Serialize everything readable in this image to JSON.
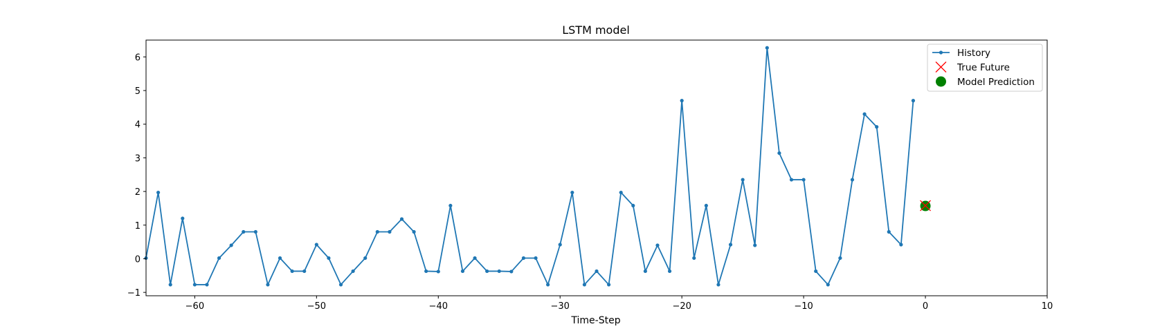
{
  "chart_data": {
    "type": "line",
    "title": "LSTM model",
    "xlabel": "Time-Step",
    "ylabel": "",
    "xlim": [
      -64,
      10
    ],
    "ylim": [
      -1.1,
      6.5
    ],
    "xticks": [
      -60,
      -50,
      -40,
      -30,
      -20,
      -10,
      0,
      10
    ],
    "yticks": [
      -1,
      0,
      1,
      2,
      3,
      4,
      5,
      6
    ],
    "grid": false,
    "legend_position": "top-right",
    "series": [
      {
        "name": "History",
        "kind": "line-with-points",
        "color": "#1f77b4",
        "x": [
          -64,
          -63,
          -62,
          -61,
          -60,
          -59,
          -58,
          -57,
          -56,
          -55,
          -54,
          -53,
          -52,
          -51,
          -50,
          -49,
          -48,
          -47,
          -46,
          -45,
          -44,
          -43,
          -42,
          -41,
          -40,
          -39,
          -38,
          -37,
          -36,
          -35,
          -34,
          -33,
          -32,
          -31,
          -30,
          -29,
          -28,
          -27,
          -26,
          -25,
          -24,
          -23,
          -22,
          -21,
          -20,
          -19,
          -18,
          -17,
          -16,
          -15,
          -14,
          -13,
          -12,
          -11,
          -10,
          -9,
          -8,
          -7,
          -6,
          -5,
          -4,
          -3,
          -2,
          -1
        ],
        "y": [
          0.02,
          1.97,
          -0.77,
          1.2,
          -0.77,
          -0.77,
          0.02,
          0.4,
          0.8,
          0.8,
          -0.77,
          0.02,
          -0.37,
          -0.37,
          0.42,
          0.02,
          -0.77,
          -0.37,
          0.02,
          0.8,
          0.8,
          1.18,
          0.8,
          -0.37,
          -0.38,
          1.58,
          -0.37,
          0.02,
          -0.37,
          -0.37,
          -0.38,
          0.02,
          0.02,
          -0.77,
          0.42,
          1.97,
          -0.77,
          -0.37,
          -0.77,
          1.97,
          1.58,
          -0.37,
          0.4,
          -0.37,
          4.7,
          0.02,
          1.58,
          -0.77,
          0.42,
          2.35,
          0.4,
          6.27,
          3.14,
          2.35,
          2.35,
          -0.37,
          -0.77,
          0.02,
          2.35,
          4.3,
          3.92,
          0.8,
          0.42,
          4.7
        ]
      },
      {
        "name": "True Future",
        "kind": "marker-x",
        "color": "#ff0000",
        "x": [
          0
        ],
        "y": [
          1.58
        ]
      },
      {
        "name": "Model Prediction",
        "kind": "marker-dot",
        "color": "#008000",
        "x": [
          0
        ],
        "y": [
          1.57
        ]
      }
    ]
  }
}
